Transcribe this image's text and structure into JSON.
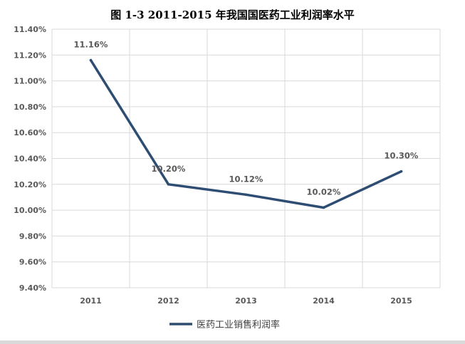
{
  "chart_data": {
    "type": "line",
    "title": "图 1-3 2011-2015 年我国国医药工业利润率水平",
    "categories": [
      "2011",
      "2012",
      "2013",
      "2014",
      "2015"
    ],
    "series": [
      {
        "name": "医药工业销售利润率",
        "values": [
          11.16,
          10.2,
          10.12,
          10.02,
          10.3
        ],
        "labels": [
          "11.16%",
          "10.20%",
          "10.12%",
          "10.02%",
          "10.30%"
        ]
      }
    ],
    "y_ticks": [
      "9.40%",
      "9.60%",
      "9.80%",
      "10.00%",
      "10.20%",
      "10.40%",
      "10.60%",
      "10.80%",
      "11.00%",
      "11.20%",
      "11.40%"
    ],
    "ylim": [
      9.4,
      11.4
    ],
    "xlabel": "",
    "ylabel": "",
    "grid": true,
    "legend_position": "bottom",
    "colors": {
      "line": "#2e4d73",
      "grid": "#d9d9d9",
      "tick_text": "#595959"
    }
  }
}
